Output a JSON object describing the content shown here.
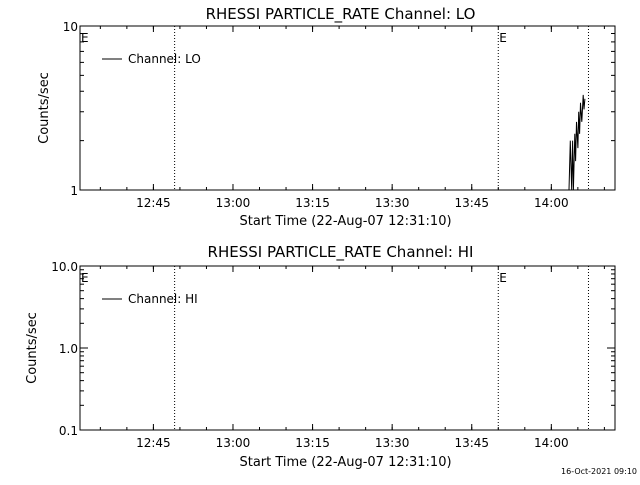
{
  "footer_timestamp": "16-Oct-2021 09:10",
  "chart_data": [
    {
      "type": "line",
      "title": "RHESSI PARTICLE_RATE Channel: LO",
      "xlabel": "Start Time (22-Aug-07 12:31:10)",
      "ylabel": "Counts/sec",
      "x_unit": "HH:MM",
      "xlim": [
        "12:31:10",
        "14:12:00"
      ],
      "x_ticks": [
        "12:45",
        "13:00",
        "13:15",
        "13:30",
        "13:45",
        "14:00"
      ],
      "y_scale": "log",
      "ylim": [
        1,
        10
      ],
      "y_ticks": [
        "1",
        "10"
      ],
      "legend": {
        "position": "top-left",
        "entries": [
          "Channel: LO"
        ]
      },
      "markers": [
        {
          "x": "12:31:10",
          "label": "E",
          "style": "none"
        },
        {
          "x": "12:49:00",
          "label": "",
          "style": "dotted"
        },
        {
          "x": "13:50:00",
          "label": "E",
          "style": "dotted"
        },
        {
          "x": "14:07:00",
          "label": "",
          "style": "dotted"
        }
      ],
      "series": [
        {
          "name": "Channel: LO",
          "x": [
            "14:03:20",
            "14:03:35",
            "14:03:50",
            "14:04:00",
            "14:04:10",
            "14:04:25",
            "14:04:35",
            "14:04:45",
            "14:05:00",
            "14:05:10",
            "14:05:20",
            "14:05:30",
            "14:05:45",
            "14:06:00",
            "14:06:10",
            "14:06:20"
          ],
          "y": [
            1,
            2,
            1,
            2,
            1,
            2.2,
            1.5,
            2.6,
            1.8,
            3,
            2.2,
            3.4,
            2.6,
            3.8,
            3.1,
            3.6
          ]
        }
      ]
    },
    {
      "type": "line",
      "title": "RHESSI PARTICLE_RATE Channel: HI",
      "xlabel": "Start Time (22-Aug-07 12:31:10)",
      "ylabel": "Counts/sec",
      "x_unit": "HH:MM",
      "xlim": [
        "12:31:10",
        "14:12:00"
      ],
      "x_ticks": [
        "12:45",
        "13:00",
        "13:15",
        "13:30",
        "13:45",
        "14:00"
      ],
      "y_scale": "log",
      "ylim": [
        0.1,
        10
      ],
      "y_ticks": [
        "0.1",
        "1.0",
        "10.0"
      ],
      "legend": {
        "position": "top-left",
        "entries": [
          "Channel: HI"
        ]
      },
      "markers": [
        {
          "x": "12:31:10",
          "label": "E",
          "style": "none"
        },
        {
          "x": "12:49:00",
          "label": "",
          "style": "dotted"
        },
        {
          "x": "13:50:00",
          "label": "E",
          "style": "dotted"
        },
        {
          "x": "14:07:00",
          "label": "",
          "style": "dotted"
        }
      ],
      "series": [
        {
          "name": "Channel: HI",
          "x": [],
          "y": []
        }
      ]
    }
  ]
}
